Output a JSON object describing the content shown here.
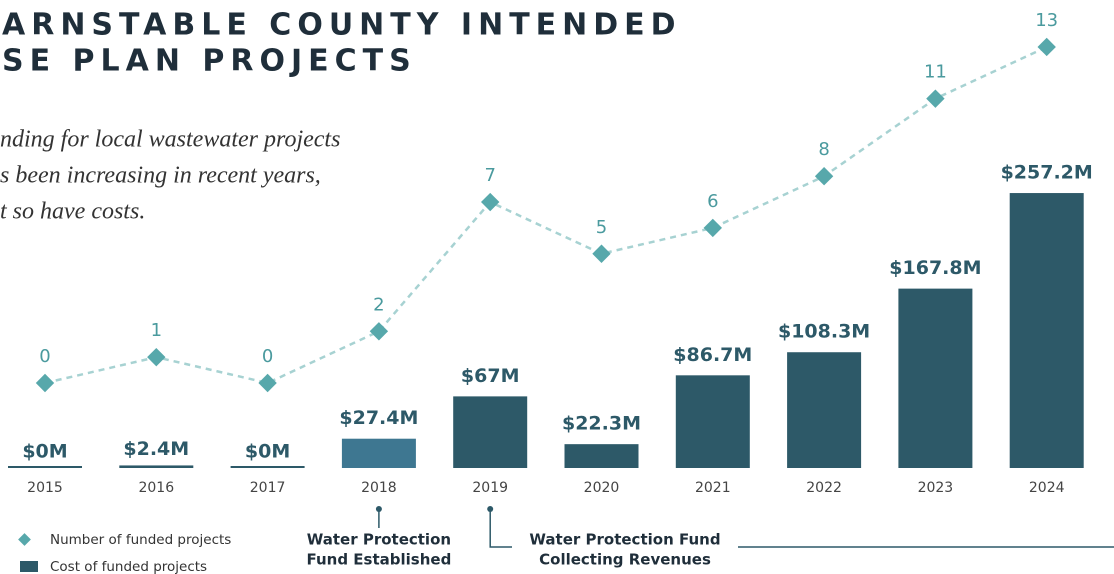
{
  "chart_data": {
    "type": "bar",
    "title": [
      "ARNSTABLE COUNTY INTENDED",
      "SE PLAN PROJECTS"
    ],
    "subtitle": [
      "nding for local wastewater projects",
      "s been increasing in recent years,",
      "t so have costs."
    ],
    "categories": [
      "2015",
      "2016",
      "2017",
      "2018",
      "2019",
      "2020",
      "2021",
      "2022",
      "2023",
      "2024"
    ],
    "series": [
      {
        "name": "Cost of funded projects",
        "type": "bar",
        "color": "#2d5968",
        "colors": [
          "#2d5968",
          "#2d5968",
          "#2d5968",
          "#3e7791",
          "#2d5968",
          "#2d5968",
          "#2d5968",
          "#2d5968",
          "#2d5968",
          "#2d5968"
        ],
        "values": [
          0,
          2.4,
          0,
          27.4,
          67,
          22.3,
          86.7,
          108.3,
          167.8,
          257.2
        ],
        "value_labels": [
          "$0M",
          "$2.4M",
          "$0M",
          "$27.4M",
          "$67M",
          "$22.3M",
          "$86.7M",
          "$108.3M",
          "$167.8M",
          "$257.2M"
        ]
      },
      {
        "name": "Number of funded projects",
        "type": "line",
        "color": "#57a8ab",
        "values": [
          0,
          1,
          0,
          2,
          7,
          5,
          6,
          8,
          11,
          13
        ]
      }
    ],
    "annotations": [
      {
        "lines": [
          "Water Protection",
          "Fund Established"
        ],
        "category": 3
      },
      {
        "lines": [
          "Water Protection Fund",
          "Collecting Revenues"
        ],
        "category": 4
      }
    ]
  }
}
